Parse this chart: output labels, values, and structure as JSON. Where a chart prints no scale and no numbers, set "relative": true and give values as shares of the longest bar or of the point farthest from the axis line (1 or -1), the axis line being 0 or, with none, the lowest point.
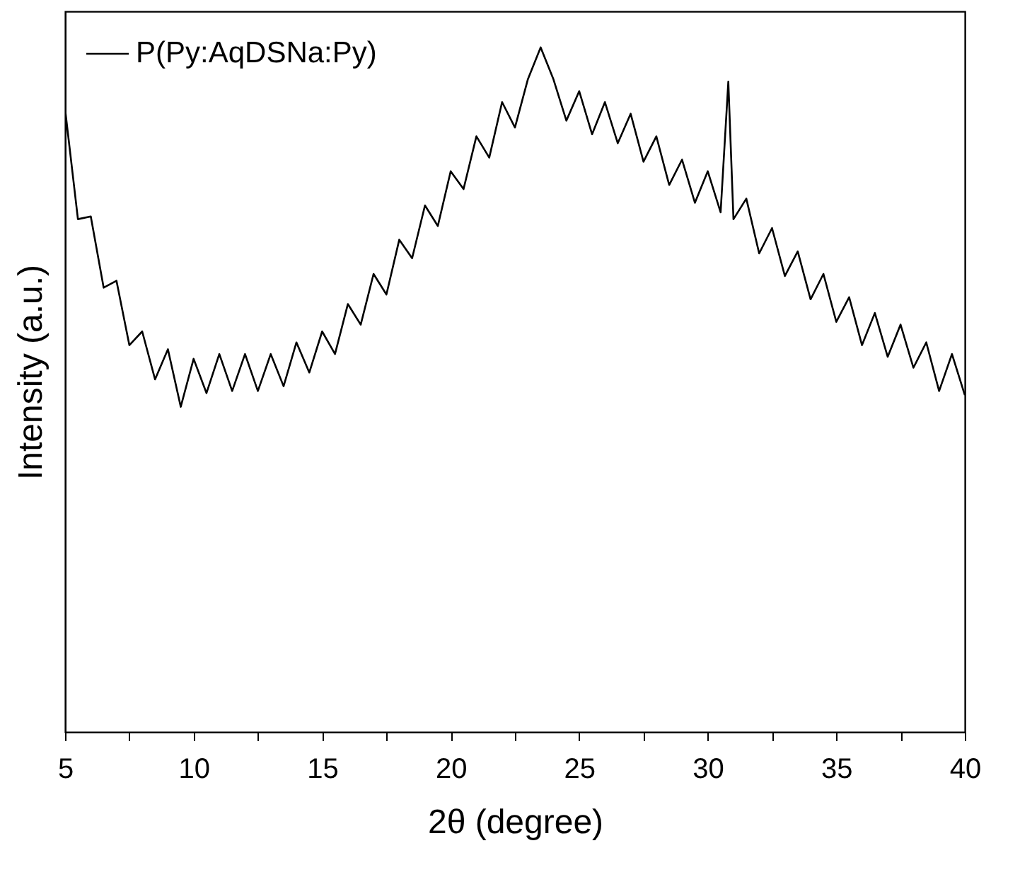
{
  "chart_data": {
    "type": "line",
    "relative": true,
    "xlabel": "2θ (degree)",
    "ylabel": "Intensity (a.u.)",
    "xlim": [
      5,
      40
    ],
    "xticks": [
      5,
      {
        "value": 7.5,
        "label": null
      },
      10,
      {
        "value": 12.5,
        "label": null
      },
      15,
      {
        "value": 17.5,
        "label": null
      },
      20,
      {
        "value": 22.5,
        "label": null
      },
      25,
      {
        "value": 27.5,
        "label": null
      },
      30,
      {
        "value": 32.5,
        "label": null
      },
      35,
      {
        "value": 37.5,
        "label": null
      },
      40
    ],
    "x": [
      5.0,
      5.5,
      6.0,
      6.5,
      7.0,
      7.5,
      8.0,
      8.5,
      9.0,
      9.5,
      10.0,
      10.5,
      11.0,
      11.5,
      12.0,
      12.5,
      13.0,
      13.5,
      14.0,
      14.5,
      15.0,
      15.5,
      16.0,
      16.5,
      17.0,
      17.5,
      18.0,
      18.5,
      19.0,
      19.5,
      20.0,
      20.5,
      21.0,
      21.5,
      22.0,
      22.5,
      23.0,
      23.5,
      24.0,
      24.5,
      25.0,
      25.5,
      26.0,
      26.5,
      27.0,
      27.5,
      28.0,
      28.5,
      29.0,
      29.5,
      30.0,
      30.5,
      30.8,
      31.0,
      31.5,
      32.0,
      32.5,
      33.0,
      33.5,
      34.0,
      34.5,
      35.0,
      35.5,
      36.0,
      36.5,
      37.0,
      37.5,
      38.0,
      38.5,
      39.0,
      39.5,
      40.0
    ],
    "series": [
      {
        "name": "P(Py:AqDSNa:Py)",
        "color": "#000000",
        "values": [
          0.91,
          0.749,
          0.753,
          0.649,
          0.659,
          0.565,
          0.585,
          0.515,
          0.559,
          0.475,
          0.545,
          0.495,
          0.552,
          0.498,
          0.552,
          0.498,
          0.552,
          0.505,
          0.569,
          0.525,
          0.585,
          0.552,
          0.625,
          0.595,
          0.669,
          0.639,
          0.719,
          0.692,
          0.769,
          0.739,
          0.819,
          0.793,
          0.87,
          0.839,
          0.92,
          0.883,
          0.953,
          1,
          0.953,
          0.893,
          0.936,
          0.873,
          0.92,
          0.86,
          0.903,
          0.833,
          0.87,
          0.799,
          0.836,
          0.773,
          0.819,
          0.759,
          0.95,
          0.749,
          0.779,
          0.699,
          0.736,
          0.666,
          0.702,
          0.632,
          0.669,
          0.599,
          0.635,
          0.565,
          0.612,
          0.548,
          0.595,
          0.532,
          0.569,
          0.498,
          0.552,
          0.492
        ]
      }
    ],
    "legend": "top left",
    "grid": false,
    "marker": "none",
    "line_style": "solid"
  }
}
